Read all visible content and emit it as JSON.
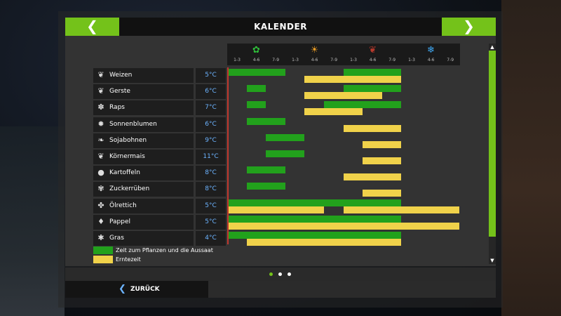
{
  "header": {
    "title": "KALENDER",
    "prev_icon": "chevron-left-icon",
    "next_icon": "chevron-right-icon"
  },
  "seasons": [
    {
      "name": "spring",
      "icon": "flower-icon",
      "glyph": "✿",
      "color": "#2fbf3a",
      "ticks": [
        "1-3",
        "4-6",
        "7-9"
      ]
    },
    {
      "name": "summer",
      "icon": "sun-icon",
      "glyph": "☀",
      "color": "#f2a024",
      "ticks": [
        "1-3",
        "4-6",
        "7-9"
      ]
    },
    {
      "name": "autumn",
      "icon": "leaf-icon",
      "glyph": "❦",
      "color": "#b8392c",
      "ticks": [
        "1-3",
        "4-6",
        "7-9"
      ]
    },
    {
      "name": "winter",
      "icon": "snowflake-icon",
      "glyph": "❄",
      "color": "#3fa9f5",
      "ticks": [
        "1-3",
        "4-6",
        "7-9"
      ]
    }
  ],
  "crops": [
    {
      "name": "Weizen",
      "temp": "5°C",
      "icon": "wheat-icon",
      "glyph": "❦",
      "plant": [
        [
          1,
          4
        ],
        [
          7,
          10
        ]
      ],
      "harvest": [
        [
          5,
          8
        ],
        [
          8,
          10
        ]
      ]
    },
    {
      "name": "Gerste",
      "temp": "6°C",
      "icon": "barley-icon",
      "glyph": "❦",
      "plant": [
        [
          2,
          3
        ],
        [
          7,
          10
        ]
      ],
      "harvest": [
        [
          5,
          8
        ],
        [
          7,
          9
        ]
      ]
    },
    {
      "name": "Raps",
      "temp": "7°C",
      "icon": "rapeseed-icon",
      "glyph": "✽",
      "plant": [
        [
          2,
          3
        ],
        [
          6,
          10
        ]
      ],
      "harvest": [
        [
          5,
          8
        ]
      ]
    },
    {
      "name": "Sonnenblumen",
      "temp": "6°C",
      "icon": "sunflower-icon",
      "glyph": "✹",
      "plant": [
        [
          2,
          4
        ]
      ],
      "harvest": [
        [
          7,
          10
        ]
      ]
    },
    {
      "name": "Sojabohnen",
      "temp": "9°C",
      "icon": "soybean-icon",
      "glyph": "❧",
      "plant": [
        [
          3,
          5
        ]
      ],
      "harvest": [
        [
          8,
          10
        ]
      ]
    },
    {
      "name": "Körnermais",
      "temp": "11°C",
      "icon": "corn-icon",
      "glyph": "❦",
      "plant": [
        [
          3,
          5
        ]
      ],
      "harvest": [
        [
          8,
          10
        ]
      ]
    },
    {
      "name": "Kartoffeln",
      "temp": "8°C",
      "icon": "potato-icon",
      "glyph": "●",
      "plant": [
        [
          2,
          4
        ]
      ],
      "harvest": [
        [
          7,
          10
        ]
      ]
    },
    {
      "name": "Zuckerrüben",
      "temp": "8°C",
      "icon": "sugarbeet-icon",
      "glyph": "✾",
      "plant": [
        [
          2,
          4
        ]
      ],
      "harvest": [
        [
          8,
          10
        ]
      ]
    },
    {
      "name": "Ölrettich",
      "temp": "5°C",
      "icon": "oilradish-icon",
      "glyph": "✤",
      "plant": [
        [
          1,
          10
        ]
      ],
      "harvest": [
        [
          1,
          6
        ],
        [
          7,
          13
        ]
      ]
    },
    {
      "name": "Pappel",
      "temp": "5°C",
      "icon": "poplar-icon",
      "glyph": "♦",
      "plant": [
        [
          1,
          10
        ]
      ],
      "harvest": [
        [
          1,
          13
        ]
      ]
    },
    {
      "name": "Gras",
      "temp": "4°C",
      "icon": "grass-icon",
      "glyph": "✱",
      "plant": [
        [
          1,
          10
        ]
      ],
      "harvest": [
        [
          2,
          10
        ]
      ]
    }
  ],
  "legend": {
    "plant_label": "Zeit zum Pflanzen und die Aussaat",
    "plant_color": "#22a11c",
    "harvest_label": "Erntezeit",
    "harvest_color": "#f0d24a"
  },
  "pager": {
    "pages": 3,
    "current": 1
  },
  "footer": {
    "back_label": "ZURÜCK"
  },
  "colors": {
    "accent": "#74c21a",
    "today_line": "#c0382e",
    "temp_text": "#6cb3ff"
  }
}
